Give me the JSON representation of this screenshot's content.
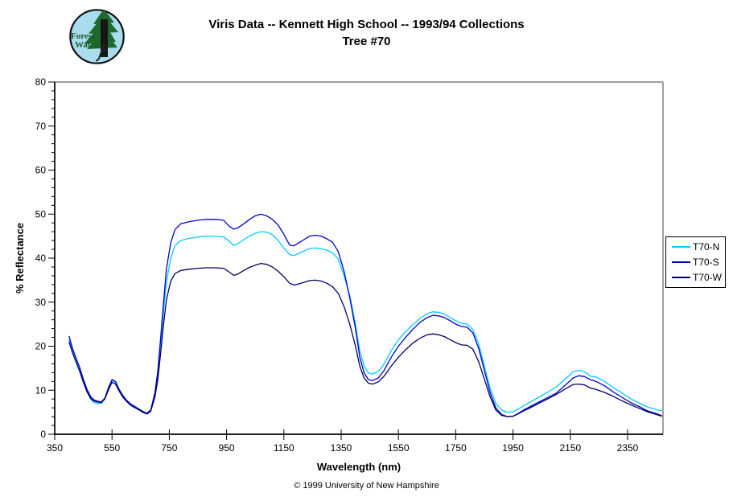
{
  "page": {
    "title_line1": "Viris Data -- Kennett High School -- 1993/94 Collections",
    "title_line2": "Tree #70",
    "footer": "© 1999 University of New Hampshire"
  },
  "logo": {
    "text_line1": "Forest",
    "text_line2": "Watch",
    "bg_color": "#a9dcec",
    "tree_color": "#1e6a2e",
    "trunk_color": "#161616",
    "text_color": "#1c5c28"
  },
  "chart_data": {
    "type": "line",
    "title": "Viris Data -- Kennett High School -- 1993/94 Collections  Tree #70",
    "xlabel": "Wavelength (nm)",
    "ylabel": "% Reflectance",
    "xlim": [
      350,
      2470
    ],
    "ylim": [
      0,
      80
    ],
    "x_ticks": [
      350,
      550,
      750,
      950,
      1150,
      1350,
      1550,
      1750,
      1950,
      2150,
      2350
    ],
    "y_ticks": [
      0,
      10,
      20,
      30,
      40,
      50,
      60,
      70,
      80
    ],
    "y_minor_step": 2,
    "grid": false,
    "legend_position": "right",
    "x": [
      400,
      412,
      425,
      437,
      450,
      462,
      475,
      487,
      500,
      512,
      525,
      537,
      550,
      562,
      575,
      587,
      600,
      615,
      630,
      645,
      660,
      672,
      685,
      700,
      710,
      720,
      730,
      740,
      755,
      770,
      790,
      820,
      850,
      880,
      910,
      940,
      960,
      975,
      990,
      1010,
      1030,
      1050,
      1070,
      1090,
      1110,
      1130,
      1150,
      1170,
      1185,
      1200,
      1220,
      1240,
      1260,
      1280,
      1300,
      1320,
      1340,
      1360,
      1380,
      1400,
      1415,
      1430,
      1445,
      1460,
      1480,
      1500,
      1525,
      1550,
      1575,
      1600,
      1625,
      1650,
      1670,
      1690,
      1710,
      1730,
      1750,
      1770,
      1790,
      1810,
      1830,
      1850,
      1870,
      1890,
      1910,
      1930,
      1950,
      1970,
      1990,
      2010,
      2040,
      2070,
      2100,
      2130,
      2160,
      2180,
      2200,
      2220,
      2240,
      2270,
      2300,
      2330,
      2360,
      2390,
      2420,
      2450,
      2470
    ],
    "series": [
      {
        "name": "T70-N",
        "color": "#00ccff",
        "values": [
          21.5,
          18.8,
          16.6,
          14.6,
          12.0,
          9.8,
          8.0,
          7.2,
          7.0,
          7.0,
          8.0,
          10.3,
          12.2,
          11.8,
          10.0,
          8.7,
          7.6,
          6.7,
          6.1,
          5.6,
          5.0,
          4.7,
          5.4,
          9.0,
          13.5,
          20.5,
          28.0,
          34.5,
          40.0,
          42.8,
          44.0,
          44.5,
          44.8,
          45.0,
          45.0,
          44.8,
          43.8,
          42.9,
          43.3,
          44.2,
          45.0,
          45.6,
          46.0,
          45.9,
          45.3,
          44.0,
          42.3,
          40.8,
          40.6,
          41.0,
          41.6,
          42.2,
          42.3,
          42.1,
          41.8,
          41.2,
          39.8,
          36.0,
          31.5,
          25.0,
          19.0,
          15.5,
          13.9,
          13.7,
          14.3,
          16.0,
          19.0,
          21.5,
          23.3,
          24.9,
          26.3,
          27.4,
          27.8,
          27.7,
          27.3,
          26.5,
          25.8,
          25.2,
          25.0,
          23.8,
          20.5,
          15.5,
          10.5,
          7.0,
          5.5,
          5.0,
          5.1,
          5.8,
          6.6,
          7.3,
          8.4,
          9.5,
          10.7,
          12.4,
          14.2,
          14.5,
          14.2,
          13.2,
          13.0,
          12.0,
          10.6,
          9.4,
          8.1,
          7.1,
          6.2,
          5.6,
          5.3
        ]
      },
      {
        "name": "T70-S",
        "color": "#0000cc",
        "values": [
          22.3,
          19.5,
          17.2,
          15.2,
          12.5,
          10.3,
          8.6,
          7.8,
          7.5,
          7.3,
          8.2,
          10.5,
          12.4,
          12.0,
          10.2,
          8.9,
          7.8,
          6.9,
          6.3,
          5.7,
          5.1,
          4.8,
          5.5,
          9.5,
          14.5,
          22.0,
          30.0,
          37.5,
          43.5,
          46.5,
          47.8,
          48.3,
          48.6,
          48.8,
          48.8,
          48.6,
          47.2,
          46.6,
          46.9,
          47.8,
          48.8,
          49.6,
          50.0,
          49.6,
          48.8,
          47.5,
          45.4,
          43.0,
          42.8,
          43.4,
          44.2,
          45.0,
          45.2,
          45.0,
          44.4,
          43.6,
          41.5,
          37.0,
          31.0,
          24.0,
          17.5,
          14.0,
          12.4,
          12.2,
          12.8,
          14.5,
          17.5,
          20.0,
          22.0,
          23.8,
          25.4,
          26.5,
          27.0,
          26.9,
          26.5,
          25.8,
          25.0,
          24.5,
          24.3,
          23.0,
          19.5,
          14.5,
          9.5,
          6.0,
          4.5,
          4.0,
          4.1,
          4.8,
          5.6,
          6.3,
          7.3,
          8.3,
          9.3,
          11.0,
          12.8,
          13.3,
          13.1,
          12.4,
          12.0,
          11.0,
          9.6,
          8.4,
          7.2,
          6.3,
          5.3,
          4.7,
          4.2
        ]
      },
      {
        "name": "T70-W",
        "color": "#000066",
        "values": [
          21.0,
          18.5,
          16.3,
          14.3,
          11.8,
          9.7,
          8.2,
          7.5,
          7.3,
          7.2,
          8.0,
          10.0,
          11.8,
          11.4,
          9.8,
          8.5,
          7.5,
          6.6,
          6.0,
          5.5,
          4.9,
          4.6,
          5.2,
          8.5,
          12.5,
          18.5,
          25.0,
          30.5,
          34.8,
          36.5,
          37.2,
          37.5,
          37.7,
          37.8,
          37.8,
          37.7,
          36.8,
          36.1,
          36.4,
          37.2,
          37.9,
          38.4,
          38.8,
          38.6,
          38.0,
          37.0,
          35.8,
          34.3,
          33.9,
          34.1,
          34.5,
          34.9,
          35.0,
          34.8,
          34.3,
          33.5,
          32.0,
          29.0,
          25.0,
          20.0,
          15.5,
          12.8,
          11.6,
          11.4,
          11.9,
          13.2,
          15.5,
          17.5,
          19.2,
          20.7,
          21.8,
          22.6,
          22.8,
          22.6,
          22.2,
          21.5,
          20.8,
          20.3,
          20.2,
          19.3,
          16.5,
          12.5,
          8.5,
          5.5,
          4.3,
          4.0,
          4.1,
          4.7,
          5.4,
          6.0,
          7.0,
          8.0,
          9.0,
          10.2,
          11.3,
          11.4,
          11.2,
          10.5,
          10.2,
          9.5,
          8.6,
          7.6,
          6.7,
          5.9,
          5.1,
          4.5,
          4.1
        ]
      }
    ]
  }
}
